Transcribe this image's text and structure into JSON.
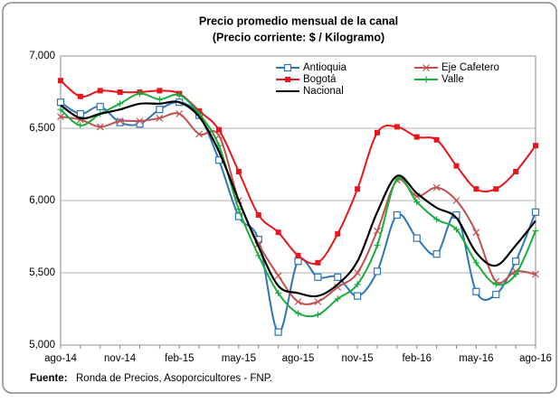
{
  "chart_data": {
    "type": "line",
    "title": "Precio promedio mensual de la canal",
    "subtitle": "(Precio corriente: $ / Kilogramo)",
    "categories": [
      "ago-14",
      null,
      null,
      "nov-14",
      null,
      null,
      "feb-15",
      null,
      null,
      "may-15",
      null,
      null,
      "ago-15",
      null,
      null,
      "nov-15",
      null,
      null,
      "feb-16",
      null,
      null,
      "may-16",
      null,
      null,
      "ago-16"
    ],
    "series": [
      {
        "name": "Antioquia",
        "color": "#2e75b6",
        "marker": "square-open",
        "values": [
          6680,
          6600,
          6650,
          6540,
          6530,
          6630,
          6680,
          6590,
          6280,
          5890,
          5730,
          5090,
          5580,
          5470,
          5470,
          5340,
          5510,
          5900,
          5740,
          5630,
          5900,
          5370,
          5350,
          5580,
          5920
        ]
      },
      {
        "name": "Eje Cafetero",
        "color": "#c0504d",
        "marker": "x",
        "values": [
          6580,
          6560,
          6510,
          6550,
          6550,
          6570,
          6600,
          6460,
          6450,
          6000,
          5700,
          5480,
          5300,
          5300,
          5400,
          5500,
          5790,
          6140,
          6030,
          6090,
          6000,
          5780,
          5440,
          5510,
          5490
        ]
      },
      {
        "name": "Bogotá",
        "color": "#e8141e",
        "marker": "square",
        "values": [
          6830,
          6720,
          6760,
          6750,
          6750,
          6760,
          6740,
          6620,
          6490,
          6200,
          5900,
          5780,
          5620,
          5570,
          5770,
          6080,
          6470,
          6510,
          6440,
          6420,
          6240,
          6080,
          6080,
          6200,
          6380
        ]
      },
      {
        "name": "Valle",
        "color": "#1aac3c",
        "marker": "plus",
        "values": [
          6630,
          6520,
          6600,
          6670,
          6740,
          6700,
          6730,
          6600,
          6380,
          5940,
          5620,
          5360,
          5220,
          5210,
          5320,
          5420,
          5690,
          6150,
          5990,
          5870,
          5800,
          5570,
          5420,
          5490,
          5790
        ]
      },
      {
        "name": "Nacional",
        "color": "#000000",
        "marker": "none",
        "values": [
          6660,
          6570,
          6600,
          6630,
          6670,
          6670,
          6680,
          6580,
          6340,
          6000,
          5680,
          5410,
          5360,
          5340,
          5420,
          5580,
          5920,
          6170,
          6050,
          5950,
          5880,
          5640,
          5550,
          5690,
          5860
        ]
      }
    ],
    "ylim": [
      5000,
      7000
    ],
    "yticks": [
      {
        "value": 5000,
        "label": "5,000"
      },
      {
        "value": 5500,
        "label": "5,500"
      },
      {
        "value": 6000,
        "label": "6,000"
      },
      {
        "value": 6500,
        "label": "6,500"
      },
      {
        "value": 7000,
        "label": "7,000"
      }
    ],
    "grid": true,
    "legend": "top-right",
    "source_label": "Fuente:",
    "source": "Ronda de Precios, Asoporcicultores  - FNP."
  }
}
